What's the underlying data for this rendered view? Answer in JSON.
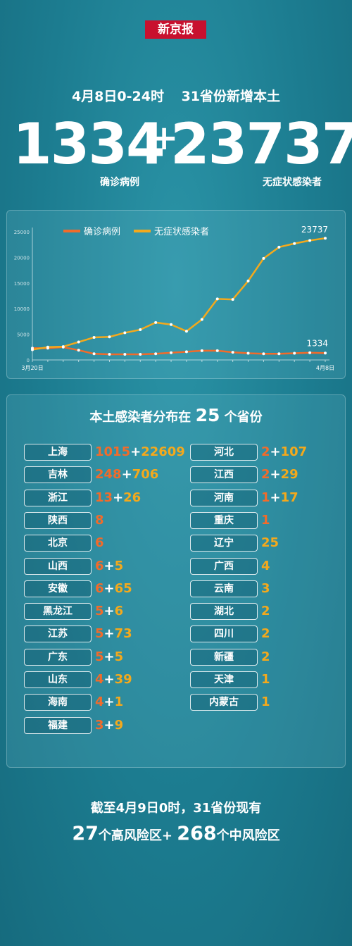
{
  "logo": "新京报",
  "headline": {
    "date": "4月8日0-24时",
    "subject": "31省份新增本土"
  },
  "totals": {
    "confirmed": "1334",
    "plus": "+",
    "asymptomatic": "23737",
    "confirmed_label": "确诊病例",
    "asymptomatic_label": "无症状感染者"
  },
  "colors": {
    "confirmed": "#f26b2a",
    "asymptomatic": "#f4a91c",
    "background": "#1d7f93"
  },
  "chart_data": {
    "type": "line",
    "x": [
      "3月20日",
      "3月21日",
      "3月22日",
      "3月23日",
      "3月24日",
      "3月25日",
      "3月26日",
      "3月27日",
      "3月28日",
      "3月29日",
      "3月30日",
      "3月31日",
      "4月1日",
      "4月2日",
      "4月3日",
      "4月4日",
      "4月5日",
      "4月6日",
      "4月7日",
      "4月8日"
    ],
    "x_tick_first": "3月20日",
    "x_tick_last": "4月8日",
    "series": [
      {
        "name": "确诊病例",
        "values": [
          2300,
          2300,
          2500,
          1900,
          1200,
          1100,
          1100,
          1100,
          1200,
          1400,
          1600,
          1800,
          1800,
          1500,
          1300,
          1200,
          1200,
          1300,
          1400,
          1334
        ]
      },
      {
        "name": "无症状感染者",
        "values": [
          2000,
          2500,
          2600,
          3500,
          4400,
          4500,
          5300,
          5900,
          7300,
          6900,
          5600,
          7900,
          11900,
          11800,
          15400,
          19800,
          22000,
          22700,
          23300,
          23737
        ]
      }
    ],
    "end_labels": [
      "1334",
      "23737"
    ],
    "yticks": [
      "0",
      "5000",
      "10000",
      "15000",
      "20000",
      "25000"
    ],
    "ylim": [
      0,
      25000
    ],
    "legend": "top-left"
  },
  "distribution": {
    "title_pre": "本土感染者分布在",
    "title_num": "25",
    "title_post": "个省份",
    "left": [
      {
        "name": "上海",
        "c": "1015",
        "a": "22609"
      },
      {
        "name": "吉林",
        "c": "248",
        "a": "706"
      },
      {
        "name": "浙江",
        "c": "13",
        "a": "26"
      },
      {
        "name": "陕西",
        "c": "8",
        "a": ""
      },
      {
        "name": "北京",
        "c": "6",
        "a": ""
      },
      {
        "name": "山西",
        "c": "6",
        "a": "5"
      },
      {
        "name": "安徽",
        "c": "6",
        "a": "65"
      },
      {
        "name": "黑龙江",
        "c": "5",
        "a": "6"
      },
      {
        "name": "江苏",
        "c": "5",
        "a": "73"
      },
      {
        "name": "广东",
        "c": "5",
        "a": "5"
      },
      {
        "name": "山东",
        "c": "4",
        "a": "39"
      },
      {
        "name": "海南",
        "c": "4",
        "a": "1"
      },
      {
        "name": "福建",
        "c": "3",
        "a": "9"
      }
    ],
    "right": [
      {
        "name": "河北",
        "c": "2",
        "a": "107"
      },
      {
        "name": "江西",
        "c": "2",
        "a": "29"
      },
      {
        "name": "河南",
        "c": "1",
        "a": "17"
      },
      {
        "name": "重庆",
        "c": "1",
        "a": ""
      },
      {
        "name": "辽宁",
        "c": "",
        "a": "25"
      },
      {
        "name": "广西",
        "c": "",
        "a": "4"
      },
      {
        "name": "云南",
        "c": "",
        "a": "3"
      },
      {
        "name": "湖北",
        "c": "",
        "a": "2"
      },
      {
        "name": "四川",
        "c": "",
        "a": "2"
      },
      {
        "name": "新疆",
        "c": "",
        "a": "2"
      },
      {
        "name": "天津",
        "c": "",
        "a": "1"
      },
      {
        "name": "内蒙古",
        "c": "",
        "a": "1"
      }
    ]
  },
  "footer": {
    "line1": "截至4月9日0时，31省份现有",
    "high_num": "27",
    "high_label": "个高风险区+",
    "mid_num": "268",
    "mid_label": "个中风险区"
  }
}
